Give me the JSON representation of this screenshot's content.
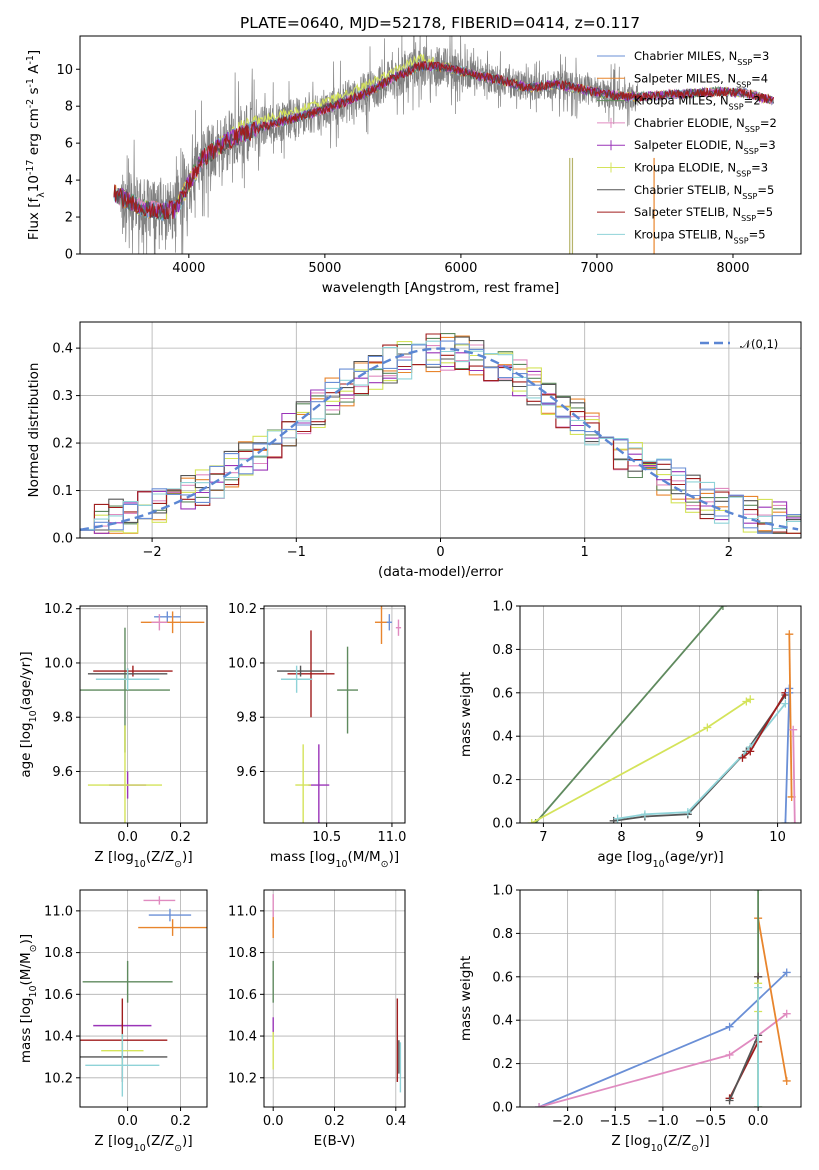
{
  "title": "PLATE=0640, MJD=52178, FIBERID=0414, z=0.117",
  "colors": [
    "#6a8fd6",
    "#e8852d",
    "#5f8a5e",
    "#e08bc0",
    "#9a34b8",
    "#d4e35a",
    "#555555",
    "#a01d1d",
    "#8fd3d8"
  ],
  "legend_models": [
    "Chabrier MILES, N$_{SSP}$=3",
    "Salpeter MILES, N$_{SSP}$=4",
    "Kroupa MILES, N$_{SSP}$=2",
    "Chabrier ELODIE, N$_{SSP}$=2",
    "Salpeter ELODIE, N$_{SSP}$=3",
    "Kroupa ELODIE, N$_{SSP}$=3",
    "Chabrier STELIB, N$_{SSP}$=5",
    "Salpeter STELIB, N$_{SSP}$=5",
    "Kroupa STELIB, N$_{SSP}$=5"
  ],
  "legend_normal": "𝒩(0,1)",
  "chart_data": [
    {
      "id": "spectrum",
      "type": "line",
      "title": "PLATE=0640, MJD=52178, FIBERID=0414, z=0.117",
      "xlabel": "wavelength [Angstrom, rest frame]",
      "ylabel": "Flux [f$_λ$10$^{-17}$ erg cm$^{-2}$ s$^{-1}$ A$^{-1}$]",
      "xlim": [
        3200,
        8500
      ],
      "ylim": [
        0,
        11.8
      ],
      "xticks": [
        4000,
        5000,
        6000,
        7000,
        8000
      ],
      "yticks": [
        0,
        2,
        4,
        6,
        8,
        10
      ],
      "grid": false,
      "legend_position": "upper right",
      "continuum": {
        "x": [
          3450,
          3550,
          3650,
          3800,
          3900,
          4000,
          4100,
          4300,
          4500,
          4700,
          4900,
          5100,
          5300,
          5500,
          5700,
          5900,
          6100,
          6300,
          6500,
          6700,
          6900,
          7100,
          7300,
          7500,
          7700,
          7900,
          8100,
          8300
        ],
        "y": [
          3.3,
          2.9,
          2.5,
          2.3,
          2.4,
          3.8,
          5.2,
          6.2,
          6.8,
          7.2,
          7.6,
          8.1,
          8.7,
          9.5,
          10.2,
          10.1,
          9.7,
          9.4,
          9.0,
          9.2,
          8.9,
          8.6,
          8.5,
          8.6,
          8.7,
          8.8,
          8.7,
          8.3
        ]
      },
      "noise_range_x": [
        3500,
        7300
      ]
    },
    {
      "id": "residuals",
      "type": "step",
      "xlabel": "(data-model)/error",
      "ylabel": "Normed distribution",
      "xlim": [
        -2.5,
        2.5
      ],
      "ylim": [
        0,
        0.455
      ],
      "xticks": [
        -2,
        -1,
        0,
        1,
        2
      ],
      "yticks": [
        0.0,
        0.1,
        0.2,
        0.3,
        0.4
      ],
      "grid": true,
      "legend_position": "upper right",
      "normal": {
        "name": "𝒩(0,1)",
        "mean": 0,
        "sigma": 1
      },
      "bin_width": 0.1
    },
    {
      "id": "age_vs_Z",
      "type": "errorbar",
      "xlabel": "Z [log$_{10}$(Z/Z$_⊙$)]",
      "ylabel": "age  [log$_{10}$(age/yr)]",
      "xlim": [
        -0.18,
        0.3
      ],
      "ylim": [
        9.41,
        10.21
      ],
      "xticks": [
        0.0,
        0.2
      ],
      "yticks": [
        9.6,
        9.8,
        10.0,
        10.2
      ],
      "grid": true,
      "points": [
        {
          "c": 0,
          "x": 0.15,
          "xe": 0.05,
          "y": 10.17,
          "ye": 0.02
        },
        {
          "c": 1,
          "x": 0.17,
          "xe": 0.12,
          "y": 10.15,
          "ye": 0.04
        },
        {
          "c": 3,
          "x": 0.12,
          "xe": 0.03,
          "y": 10.15,
          "ye": 0.03
        },
        {
          "c": 2,
          "x": -0.01,
          "xe": 0.17,
          "y": 9.9,
          "ye": 0.23
        },
        {
          "c": 7,
          "x": 0.02,
          "xe": 0.15,
          "y": 9.97,
          "ye": 0.02
        },
        {
          "c": 6,
          "x": 0.0,
          "xe": 0.15,
          "y": 9.96,
          "ye": 0.02
        },
        {
          "c": 8,
          "x": 0.0,
          "xe": 0.12,
          "y": 9.94,
          "ye": 0.04
        },
        {
          "c": 4,
          "x": 0.0,
          "xe": 0.07,
          "y": 9.55,
          "ye": 0.05
        },
        {
          "c": 5,
          "x": -0.01,
          "xe": 0.14,
          "y": 9.55,
          "ye": 0.22
        }
      ]
    },
    {
      "id": "age_vs_mass",
      "type": "errorbar",
      "xlabel": "mass [log$_{10}$(M/M$_⊙$)]",
      "ylabel": "",
      "xlim": [
        10.02,
        11.1
      ],
      "ylim": [
        9.41,
        10.21
      ],
      "xticks": [
        10.5,
        11.0
      ],
      "yticks": [
        9.6,
        9.8,
        10.0,
        10.2
      ],
      "grid": true,
      "points": [
        {
          "c": 1,
          "x": 10.92,
          "xe": 0.05,
          "y": 10.15,
          "ye": 0.08
        },
        {
          "c": 0,
          "x": 10.98,
          "xe": 0.02,
          "y": 10.15,
          "ye": 0.03
        },
        {
          "c": 3,
          "x": 11.05,
          "xe": 0.02,
          "y": 10.13,
          "ye": 0.03
        },
        {
          "c": 7,
          "x": 10.38,
          "xe": 0.18,
          "y": 9.96,
          "ye": 0.16
        },
        {
          "c": 6,
          "x": 10.3,
          "xe": 0.18,
          "y": 9.97,
          "ye": 0.02
        },
        {
          "c": 8,
          "x": 10.27,
          "xe": 0.12,
          "y": 9.94,
          "ye": 0.05
        },
        {
          "c": 2,
          "x": 10.66,
          "xe": 0.08,
          "y": 9.9,
          "ye": 0.16
        },
        {
          "c": 4,
          "x": 10.44,
          "xe": 0.08,
          "y": 9.55,
          "ye": 0.15
        },
        {
          "c": 5,
          "x": 10.32,
          "xe": 0.06,
          "y": 9.55,
          "ye": 0.15
        }
      ]
    },
    {
      "id": "weight_vs_age",
      "type": "line",
      "xlabel": "age  [log$_{10}$(age/yr)]",
      "ylabel": "mass weight",
      "xlim": [
        6.7,
        10.3
      ],
      "ylim": [
        0,
        1.0
      ],
      "xticks": [
        7,
        8,
        9,
        10
      ],
      "yticks": [
        0.0,
        0.2,
        0.4,
        0.6,
        0.8,
        1.0
      ],
      "grid": true,
      "series": [
        {
          "c": 2,
          "x": [
            6.9,
            9.3
          ],
          "y": [
            0.0,
            1.0
          ]
        },
        {
          "c": 5,
          "x": [
            6.85,
            9.1,
            9.6,
            9.65
          ],
          "y": [
            0.0,
            0.44,
            0.56,
            0.57
          ]
        },
        {
          "c": 6,
          "x": [
            7.9,
            8.3,
            8.85,
            9.6,
            10.1
          ],
          "y": [
            0.01,
            0.03,
            0.04,
            0.33,
            0.59
          ]
        },
        {
          "c": 8,
          "x": [
            7.95,
            8.3,
            8.85,
            9.65,
            10.1
          ],
          "y": [
            0.02,
            0.04,
            0.05,
            0.35,
            0.55
          ]
        },
        {
          "c": 7,
          "x": [
            9.55,
            9.65,
            10.1
          ],
          "y": [
            0.3,
            0.33,
            0.6
          ]
        },
        {
          "c": 0,
          "x": [
            10.1,
            10.15,
            10.15
          ],
          "y": [
            0.0,
            0.6,
            0.62
          ]
        },
        {
          "c": 1,
          "x": [
            10.15,
            10.18
          ],
          "y": [
            0.87,
            0.12
          ]
        },
        {
          "c": 3,
          "x": [
            10.2,
            10.22
          ],
          "y": [
            0.43,
            0.0
          ]
        }
      ]
    },
    {
      "id": "mass_vs_Z",
      "type": "errorbar",
      "xlabel": "Z [log$_{10}$(Z/Z$_⊙$)]",
      "ylabel": "mass [log$_{10}$(M/M$_⊙$)]",
      "xlim": [
        -0.18,
        0.3
      ],
      "ylim": [
        10.06,
        11.1
      ],
      "xticks": [
        0.0,
        0.2
      ],
      "yticks": [
        10.2,
        10.4,
        10.6,
        10.8,
        11.0
      ],
      "grid": true,
      "points": [
        {
          "c": 3,
          "x": 0.12,
          "xe": 0.06,
          "y": 11.05,
          "ye": 0.02
        },
        {
          "c": 0,
          "x": 0.16,
          "xe": 0.08,
          "y": 10.98,
          "ye": 0.03
        },
        {
          "c": 1,
          "x": 0.17,
          "xe": 0.13,
          "y": 10.92,
          "ye": 0.04
        },
        {
          "c": 2,
          "x": 0.0,
          "xe": 0.17,
          "y": 10.66,
          "ye": 0.1
        },
        {
          "c": 4,
          "x": -0.02,
          "xe": 0.11,
          "y": 10.45,
          "ye": 0.01
        },
        {
          "c": 7,
          "x": -0.02,
          "xe": 0.17,
          "y": 10.38,
          "ye": 0.2
        },
        {
          "c": 5,
          "x": -0.02,
          "xe": 0.08,
          "y": 10.33,
          "ye": 0.08
        },
        {
          "c": 6,
          "x": -0.02,
          "xe": 0.17,
          "y": 10.3,
          "ye": 0.01
        },
        {
          "c": 8,
          "x": -0.02,
          "xe": 0.14,
          "y": 10.26,
          "ye": 0.15
        }
      ]
    },
    {
      "id": "mass_vs_ebv",
      "type": "errorbar",
      "xlabel": "E(B-V)",
      "ylabel": "",
      "xlim": [
        -0.03,
        0.43
      ],
      "ylim": [
        10.06,
        11.1
      ],
      "xticks": [
        0.0,
        0.2,
        0.4
      ],
      "yticks": [
        10.2,
        10.4,
        10.6,
        10.8,
        11.0
      ],
      "grid": true,
      "points": [
        {
          "c": 3,
          "x": 0.0,
          "xe": 0.0,
          "y": 11.0,
          "ye": 0.08
        },
        {
          "c": 1,
          "x": 0.0,
          "xe": 0.0,
          "y": 10.92,
          "ye": 0.05
        },
        {
          "c": 2,
          "x": 0.0,
          "xe": 0.0,
          "y": 10.66,
          "ye": 0.1
        },
        {
          "c": 4,
          "x": 0.0,
          "xe": 0.0,
          "y": 10.45,
          "ye": 0.04
        },
        {
          "c": 5,
          "x": 0.0,
          "xe": 0.0,
          "y": 10.33,
          "ye": 0.09
        },
        {
          "c": 7,
          "x": 0.405,
          "xe": 0.0,
          "y": 10.38,
          "ye": 0.2
        },
        {
          "c": 6,
          "x": 0.41,
          "xe": 0.0,
          "y": 10.3,
          "ye": 0.08
        },
        {
          "c": 8,
          "x": 0.415,
          "xe": 0.0,
          "y": 10.25,
          "ye": 0.12
        }
      ]
    },
    {
      "id": "weight_vs_Z",
      "type": "line",
      "xlabel": "Z [log$_{10}$(Z/Z$_⊙$)]",
      "ylabel": "mass weight",
      "xlim": [
        -2.5,
        0.45
      ],
      "ylim": [
        0,
        1.0
      ],
      "xticks": [
        -2.0,
        -1.5,
        -1.0,
        -0.5,
        0.0
      ],
      "yticks": [
        0.0,
        0.2,
        0.4,
        0.6,
        0.8,
        1.0
      ],
      "grid": true,
      "series": [
        {
          "c": 0,
          "x": [
            -2.3,
            -0.3,
            0.3
          ],
          "y": [
            0.0,
            0.37,
            0.62
          ]
        },
        {
          "c": 3,
          "x": [
            -2.3,
            -0.3,
            0.0,
            0.3
          ],
          "y": [
            0.0,
            0.24,
            0.33,
            0.43
          ]
        },
        {
          "c": 1,
          "x": [
            0.0,
            0.3
          ],
          "y": [
            0.87,
            0.12
          ]
        },
        {
          "c": 2,
          "x": [
            0.0,
            0.0
          ],
          "y": [
            0.0,
            1.0
          ]
        },
        {
          "c": 7,
          "x": [
            -0.3,
            0.0,
            0.0
          ],
          "y": [
            0.04,
            0.3,
            0.6
          ]
        },
        {
          "c": 6,
          "x": [
            -0.3,
            0.0,
            0.0
          ],
          "y": [
            0.03,
            0.33,
            0.6
          ]
        },
        {
          "c": 5,
          "x": [
            0.0,
            0.0,
            0.0
          ],
          "y": [
            0.0,
            0.44,
            0.57
          ]
        },
        {
          "c": 8,
          "x": [
            0.0,
            0.0
          ],
          "y": [
            0.0,
            0.55
          ]
        }
      ]
    }
  ]
}
